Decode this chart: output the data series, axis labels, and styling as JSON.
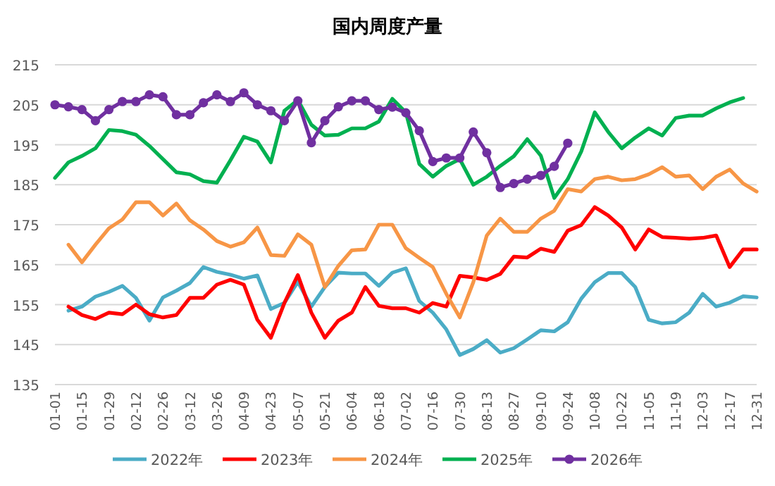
{
  "chart_data": {
    "type": "line",
    "title": "国内周度产量",
    "categories": [
      "01-01",
      null,
      "01-15",
      null,
      "01-29",
      null,
      "02-12",
      null,
      "02-26",
      null,
      "03-12",
      null,
      "03-26",
      null,
      "04-09",
      null,
      "04-23",
      null,
      "05-07",
      null,
      "05-21",
      null,
      "06-04",
      null,
      "06-18",
      null,
      "07-02",
      null,
      "07-16",
      null,
      "07-30",
      null,
      "08-13",
      null,
      "08-27",
      null,
      "09-10",
      null,
      "09-24",
      null,
      "10-08",
      null,
      "10-22",
      null,
      "11-05",
      null,
      "11-19",
      null,
      "12-03",
      null,
      "12-17",
      null,
      "12-31"
    ],
    "ylim": [
      135,
      215
    ],
    "yticks": [
      135,
      145,
      155,
      165,
      175,
      185,
      195,
      205,
      215
    ],
    "grid": "y",
    "legend": "bottom",
    "marker": "none",
    "line_style": "solid",
    "series": [
      {
        "name": "2022年",
        "color": "#4bacc6",
        "values": [
          null,
          153.5,
          154.5,
          157,
          158.2,
          159.7,
          156.7,
          151,
          156.8,
          158.5,
          160.4,
          164.4,
          163.2,
          162.5,
          161.5,
          162.3,
          153.9,
          155.4,
          160.7,
          154.5,
          159.4,
          163,
          162.8,
          162.8,
          159.7,
          163,
          164.1,
          155.9,
          153,
          148.8,
          142.4,
          143.9,
          146.1,
          143,
          144.1,
          146.3,
          148.6,
          148.3,
          150.6,
          156.5,
          160.6,
          162.9,
          162.9,
          159.4,
          151.2,
          150.3,
          150.6,
          153,
          157.7,
          154.5,
          155.5,
          157.1,
          156.8
        ]
      },
      {
        "name": "2023年",
        "color": "#ff0000",
        "values": [
          null,
          154.5,
          152.4,
          151.4,
          153,
          152.6,
          155,
          152.6,
          151.8,
          152.4,
          156.7,
          156.7,
          160,
          161.2,
          160,
          151.2,
          146.7,
          155.4,
          162.4,
          153,
          146.7,
          151,
          153,
          159.4,
          154.7,
          154.1,
          154.1,
          153,
          155.4,
          154.5,
          162.2,
          161.8,
          161.2,
          162.7,
          167,
          166.8,
          169,
          168.2,
          173.5,
          174.9,
          179.4,
          177.3,
          174.3,
          168.8,
          173.8,
          171.9,
          171.7,
          171.5,
          171.7,
          172.3,
          164.4,
          168.8,
          168.8
        ]
      },
      {
        "name": "2024年",
        "color": "#f79646",
        "values": [
          null,
          170,
          165.6,
          170,
          174.1,
          176.3,
          180.6,
          180.6,
          177.3,
          180.3,
          176.1,
          173.8,
          170.9,
          169.5,
          170.6,
          174.3,
          167.4,
          167.2,
          172.6,
          170,
          159.4,
          164.7,
          168.6,
          168.8,
          175,
          175,
          169.1,
          166.7,
          164.4,
          157.7,
          151.8,
          160.6,
          172.3,
          176.5,
          173.2,
          173.2,
          176.5,
          178.5,
          183.9,
          183.3,
          186.4,
          187,
          186.1,
          186.4,
          187.6,
          189.4,
          187,
          187.3,
          183.9,
          187,
          188.8,
          185.3,
          183.3
        ]
      },
      {
        "name": "2025年",
        "color": "#00b050",
        "values": [
          186.7,
          190.6,
          192.2,
          194.1,
          198.7,
          198.4,
          197.5,
          194.7,
          191.4,
          188.1,
          187.6,
          185.9,
          185.5,
          191.1,
          197,
          195.8,
          190.6,
          203.5,
          206.2,
          200,
          197.3,
          197.5,
          199.1,
          199.1,
          200.8,
          206.5,
          203.1,
          190.2,
          187,
          189.7,
          191.4,
          185,
          187,
          189.7,
          192.1,
          196.4,
          192.3,
          181.7,
          186.4,
          193.3,
          203.1,
          198.2,
          194.1,
          196.8,
          199.1,
          197.3,
          201.7,
          202.3,
          202.3,
          204.1,
          205.6,
          206.7,
          null
        ]
      },
      {
        "name": "2026年",
        "color": "#7030a0",
        "marker": "circle",
        "values": [
          205,
          204.5,
          203.8,
          201,
          203.8,
          205.8,
          205.8,
          207.5,
          207,
          202.5,
          202.5,
          205.5,
          207.5,
          205.8,
          208,
          205,
          203.5,
          201,
          206,
          195.5,
          201,
          204.5,
          206,
          206,
          203.8,
          204.4,
          203,
          198.5,
          190.8,
          191.7,
          191.7,
          198.2,
          193,
          184.3,
          185.3,
          186.4,
          187.3,
          189.6,
          195.4,
          null,
          null,
          null,
          null,
          null,
          null,
          null,
          null,
          null,
          null,
          null,
          null,
          null,
          null
        ]
      }
    ]
  }
}
